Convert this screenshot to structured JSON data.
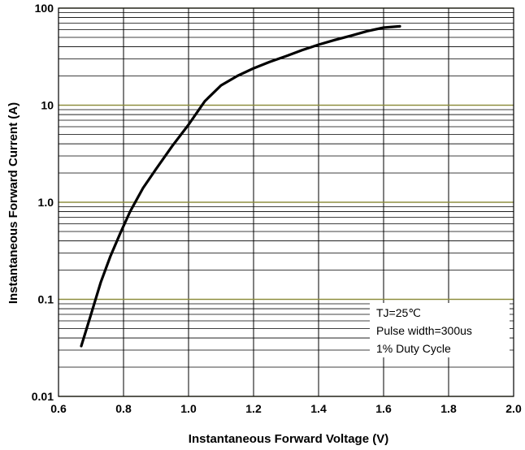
{
  "chart_data": {
    "type": "line",
    "title": "",
    "xlabel": "Instantaneous Forward Voltage (V)",
    "ylabel": "Instantaneous Forward Current (A)",
    "xlim": [
      0.6,
      2.0
    ],
    "ylim": [
      0.01,
      100
    ],
    "yscale": "log",
    "grid": true,
    "x_ticks": [
      "0.6",
      "0.8",
      "1.0",
      "1.2",
      "1.4",
      "1.6",
      "1.8",
      "2.0"
    ],
    "y_ticks": [
      "0.01",
      "0.1",
      "1.0",
      "10",
      "100"
    ],
    "series": [
      {
        "x": [
          0.67,
          0.7,
          0.73,
          0.76,
          0.79,
          0.82,
          0.86,
          0.9,
          0.95,
          1.0,
          1.05,
          1.1,
          1.15,
          1.2,
          1.25,
          1.3,
          1.35,
          1.4,
          1.45,
          1.5,
          1.55,
          1.6,
          1.65
        ],
        "y": [
          0.033,
          0.07,
          0.15,
          0.28,
          0.48,
          0.8,
          1.4,
          2.2,
          3.8,
          6.3,
          11,
          16,
          20,
          24,
          28,
          32,
          37,
          42,
          47,
          52,
          58,
          63,
          65
        ]
      }
    ],
    "annotations": [
      "TJ=25℃",
      "Pulse width=300us",
      "1% Duty Cycle"
    ]
  }
}
